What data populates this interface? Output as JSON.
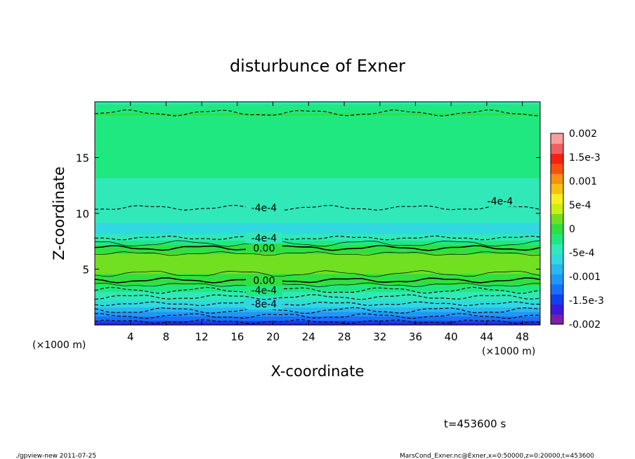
{
  "chart_data": {
    "type": "heatmap",
    "title": "disturbunce of Exner",
    "xlabel": "X-coordinate",
    "ylabel": "Z-coordinate",
    "x_unit_left": "(×1000 m)",
    "x_unit_right": "(×1000 m)",
    "xlim": [
      0,
      50
    ],
    "ylim": [
      0,
      20
    ],
    "x_ticks": [
      {
        "v": 4,
        "label": "4"
      },
      {
        "v": 8,
        "label": "8"
      },
      {
        "v": 12,
        "label": "12"
      },
      {
        "v": 16,
        "label": "16"
      },
      {
        "v": 20,
        "label": "20"
      },
      {
        "v": 24,
        "label": "24"
      },
      {
        "v": 28,
        "label": "28"
      },
      {
        "v": 32,
        "label": "32"
      },
      {
        "v": 36,
        "label": "36"
      },
      {
        "v": 40,
        "label": "40"
      },
      {
        "v": 44,
        "label": "44"
      },
      {
        "v": 48,
        "label": "48"
      }
    ],
    "y_ticks": [
      {
        "v": 5,
        "label": "5"
      },
      {
        "v": 10,
        "label": "10"
      },
      {
        "v": 15,
        "label": "15"
      }
    ],
    "colorbar": {
      "range": [
        -0.002,
        0.002
      ],
      "labels": [
        {
          "v": 0.002,
          "label": "0.002"
        },
        {
          "v": 0.0015,
          "label": "1.5e-3"
        },
        {
          "v": 0.001,
          "label": "0.001"
        },
        {
          "v": 0.0005,
          "label": "5e-4"
        },
        {
          "v": 0,
          "label": "0"
        },
        {
          "v": -0.0005,
          "label": "-5e-4"
        },
        {
          "v": -0.001,
          "label": "-0.001"
        },
        {
          "v": -0.0015,
          "label": "-1.5e-3"
        },
        {
          "v": -0.002,
          "label": "-0.002"
        }
      ],
      "colors": [
        "#7a1fa8",
        "#3a1ad8",
        "#1040f0",
        "#1a70f8",
        "#2098f8",
        "#28b8f0",
        "#30d8e0",
        "#30e8b8",
        "#20e880",
        "#30e040",
        "#70e020",
        "#c8f010",
        "#f8f020",
        "#f8c010",
        "#f89010",
        "#f85010",
        "#f82010",
        "#f06060",
        "#f8a0a0"
      ]
    },
    "field_profile": [
      {
        "z": 0.0,
        "v": -0.00175
      },
      {
        "z": 0.5,
        "v": -0.00135
      },
      {
        "z": 1.0,
        "v": -0.00105
      },
      {
        "z": 1.5,
        "v": -0.0008
      },
      {
        "z": 2.0,
        "v": -0.0006
      },
      {
        "z": 2.5,
        "v": -0.00045
      },
      {
        "z": 3.0,
        "v": -0.0003
      },
      {
        "z": 3.5,
        "v": -0.00015
      },
      {
        "z": 4.0,
        "v": 0.0
      },
      {
        "z": 4.5,
        "v": 0.0001
      },
      {
        "z": 5.5,
        "v": 0.00018
      },
      {
        "z": 6.5,
        "v": 0.0001
      },
      {
        "z": 7.0,
        "v": 0.0
      },
      {
        "z": 7.5,
        "v": -0.00025
      },
      {
        "z": 8.5,
        "v": -0.0006
      },
      {
        "z": 9.5,
        "v": -0.0005
      },
      {
        "z": 11.0,
        "v": -0.00042
      },
      {
        "z": 14.0,
        "v": -0.00028
      },
      {
        "z": 17.0,
        "v": -0.00015
      },
      {
        "z": 19.0,
        "v": -0.0001
      },
      {
        "z": 20.0,
        "v": -0.00035
      }
    ],
    "contours": [
      {
        "z": 0.3,
        "style": "dashed",
        "label": ""
      },
      {
        "z": 0.8,
        "style": "dashed",
        "label": ""
      },
      {
        "z": 1.3,
        "style": "dashed",
        "label": ""
      },
      {
        "z": 1.9,
        "style": "dashed",
        "label": "-8e-4"
      },
      {
        "z": 2.5,
        "style": "dashed",
        "label": ""
      },
      {
        "z": 3.1,
        "style": "dashed",
        "label": "-4e-4"
      },
      {
        "z": 3.6,
        "style": "thin",
        "label": ""
      },
      {
        "z": 4.0,
        "style": "solid",
        "label": "0.00"
      },
      {
        "z": 4.6,
        "style": "thin",
        "label": ""
      },
      {
        "z": 6.4,
        "style": "thin",
        "label": ""
      },
      {
        "z": 6.9,
        "style": "solid",
        "label": "0.00"
      },
      {
        "z": 7.3,
        "style": "thin",
        "label": ""
      },
      {
        "z": 7.8,
        "style": "dashed",
        "label": "-4e-4"
      },
      {
        "z": 10.5,
        "style": "dashed",
        "label": "-4e-4"
      },
      {
        "z": 19.0,
        "style": "dashed",
        "label": ""
      }
    ],
    "right_contour_label": "-4e-4",
    "time_label": "t=453600 s"
  },
  "footer": {
    "left": "./gpview-new   2011-07-25",
    "right": "MarsCond_Exner.nc@Exner,x=0:50000,z=0:20000,t=453600"
  }
}
